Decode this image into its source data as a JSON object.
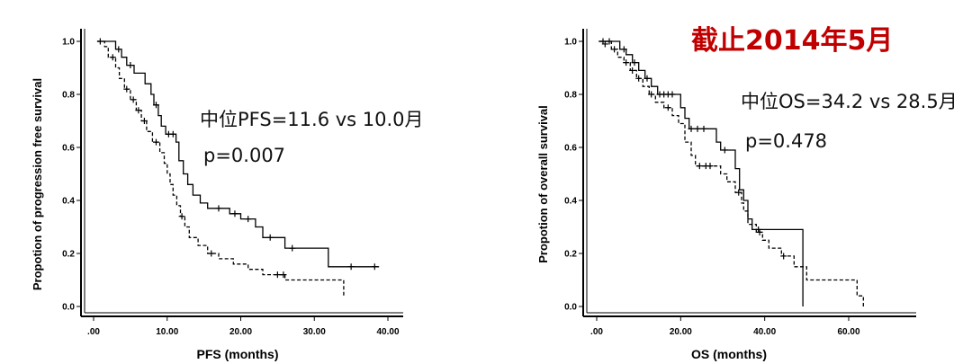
{
  "banner": "截止2014年5月",
  "chart_data": [
    {
      "type": "line",
      "subtype": "kaplan-meier",
      "title": "",
      "xlabel": "PFS (months)",
      "ylabel": "Propotion of progression free survival",
      "xlim": [
        0,
        40
      ],
      "ylim": [
        0,
        1.0
      ],
      "xticks": [
        0,
        10,
        20,
        30,
        40
      ],
      "xtick_labels": [
        ".00",
        "10.00",
        "20.00",
        "30.00",
        "40.00"
      ],
      "yticks": [
        0,
        0.2,
        0.4,
        0.6,
        0.8,
        1.0
      ],
      "ytick_labels": [
        "0.0",
        "0.2",
        "0.4",
        "0.6",
        "0.8",
        "1.0"
      ],
      "annotations": [
        "中位PFS=11.6 vs 10.0月",
        "p=0.007"
      ],
      "series": [
        {
          "style": "solid",
          "steps": [
            [
              0.5,
              1.0
            ],
            [
              2.0,
              1.0
            ],
            [
              3.0,
              0.97
            ],
            [
              3.8,
              0.94
            ],
            [
              4.5,
              0.91
            ],
            [
              5.5,
              0.88
            ],
            [
              7.0,
              0.84
            ],
            [
              7.8,
              0.8
            ],
            [
              8.2,
              0.76
            ],
            [
              8.8,
              0.72
            ],
            [
              9.2,
              0.68
            ],
            [
              9.8,
              0.65
            ],
            [
              11.2,
              0.62
            ],
            [
              11.6,
              0.55
            ],
            [
              12.2,
              0.5
            ],
            [
              12.8,
              0.46
            ],
            [
              13.5,
              0.42
            ],
            [
              14.5,
              0.39
            ],
            [
              15.5,
              0.37
            ],
            [
              18.0,
              0.37
            ],
            [
              18.5,
              0.35
            ],
            [
              20.0,
              0.33
            ],
            [
              22.0,
              0.3
            ],
            [
              23.0,
              0.26
            ],
            [
              25.5,
              0.26
            ],
            [
              26.0,
              0.22
            ],
            [
              31.8,
              0.22
            ],
            [
              31.9,
              0.15
            ],
            [
              38.8,
              0.15
            ]
          ],
          "censors": [
            [
              0.9,
              1.0
            ],
            [
              3.4,
              0.97
            ],
            [
              5.0,
              0.91
            ],
            [
              8.5,
              0.76
            ],
            [
              10.2,
              0.65
            ],
            [
              10.8,
              0.65
            ],
            [
              17.0,
              0.37
            ],
            [
              19.2,
              0.35
            ],
            [
              21.0,
              0.33
            ],
            [
              24.0,
              0.26
            ],
            [
              27.0,
              0.22
            ],
            [
              35.0,
              0.15
            ],
            [
              38.2,
              0.15
            ]
          ]
        },
        {
          "style": "dashed",
          "steps": [
            [
              0.5,
              1.0
            ],
            [
              1.5,
              0.98
            ],
            [
              2.0,
              0.94
            ],
            [
              3.0,
              0.9
            ],
            [
              3.5,
              0.86
            ],
            [
              4.2,
              0.82
            ],
            [
              5.0,
              0.78
            ],
            [
              5.8,
              0.74
            ],
            [
              6.5,
              0.7
            ],
            [
              7.2,
              0.66
            ],
            [
              8.0,
              0.62
            ],
            [
              9.0,
              0.58
            ],
            [
              9.6,
              0.54
            ],
            [
              10.0,
              0.5
            ],
            [
              10.4,
              0.46
            ],
            [
              10.8,
              0.42
            ],
            [
              11.3,
              0.38
            ],
            [
              11.8,
              0.34
            ],
            [
              12.4,
              0.3
            ],
            [
              13.0,
              0.26
            ],
            [
              14.2,
              0.23
            ],
            [
              15.5,
              0.2
            ],
            [
              17.0,
              0.18
            ],
            [
              19.0,
              0.16
            ],
            [
              21.0,
              0.14
            ],
            [
              23.0,
              0.12
            ],
            [
              26.0,
              0.1
            ],
            [
              33.5,
              0.1
            ],
            [
              34.0,
              0.04
            ]
          ],
          "censors": [
            [
              2.6,
              0.94
            ],
            [
              4.5,
              0.82
            ],
            [
              5.4,
              0.78
            ],
            [
              6.1,
              0.74
            ],
            [
              6.9,
              0.7
            ],
            [
              8.5,
              0.62
            ],
            [
              12.0,
              0.34
            ],
            [
              16.0,
              0.2
            ],
            [
              25.0,
              0.12
            ],
            [
              25.8,
              0.12
            ]
          ]
        }
      ]
    },
    {
      "type": "line",
      "subtype": "kaplan-meier",
      "title": "",
      "xlabel": "OS (months)",
      "ylabel": "Propotion of overall survival",
      "xlim": [
        0,
        70
      ],
      "ylim": [
        0,
        1.0
      ],
      "xticks": [
        0,
        20,
        40,
        60
      ],
      "xtick_labels": [
        ".00",
        "20.00",
        "40.00",
        "60.00"
      ],
      "yticks": [
        0,
        0.2,
        0.4,
        0.6,
        0.8,
        1.0
      ],
      "ytick_labels": [
        "0.0",
        "0.2",
        "0.4",
        "0.6",
        "0.8",
        "1.0"
      ],
      "annotations": [
        "中位OS=34.2 vs 28.5月",
        "p=0.478"
      ],
      "series": [
        {
          "style": "solid",
          "steps": [
            [
              0.5,
              1.0
            ],
            [
              4.0,
              1.0
            ],
            [
              5.5,
              0.97
            ],
            [
              7.0,
              0.95
            ],
            [
              8.5,
              0.92
            ],
            [
              10.0,
              0.89
            ],
            [
              11.5,
              0.86
            ],
            [
              13.0,
              0.83
            ],
            [
              14.5,
              0.8
            ],
            [
              19.0,
              0.8
            ],
            [
              20.0,
              0.75
            ],
            [
              21.0,
              0.71
            ],
            [
              22.0,
              0.67
            ],
            [
              27.0,
              0.67
            ],
            [
              28.5,
              0.62
            ],
            [
              29.5,
              0.59
            ],
            [
              32.0,
              0.59
            ],
            [
              33.0,
              0.52
            ],
            [
              34.0,
              0.44
            ],
            [
              35.0,
              0.4
            ],
            [
              36.0,
              0.33
            ],
            [
              37.0,
              0.29
            ],
            [
              49.0,
              0.29
            ],
            [
              49.1,
              0.0
            ]
          ],
          "censors": [
            [
              1.5,
              1.0
            ],
            [
              3.0,
              1.0
            ],
            [
              6.5,
              0.97
            ],
            [
              9.0,
              0.92
            ],
            [
              12.0,
              0.86
            ],
            [
              15.0,
              0.8
            ],
            [
              16.0,
              0.8
            ],
            [
              17.0,
              0.8
            ],
            [
              18.0,
              0.8
            ],
            [
              22.5,
              0.67
            ],
            [
              24.0,
              0.67
            ],
            [
              25.5,
              0.67
            ],
            [
              30.5,
              0.59
            ],
            [
              38.5,
              0.29
            ]
          ]
        },
        {
          "style": "dashed",
          "steps": [
            [
              0.5,
              1.0
            ],
            [
              3.5,
              0.97
            ],
            [
              5.0,
              0.94
            ],
            [
              6.5,
              0.92
            ],
            [
              8.0,
              0.89
            ],
            [
              9.5,
              0.86
            ],
            [
              11.0,
              0.83
            ],
            [
              12.5,
              0.8
            ],
            [
              14.0,
              0.77
            ],
            [
              16.0,
              0.75
            ],
            [
              18.0,
              0.72
            ],
            [
              19.5,
              0.69
            ],
            [
              21.0,
              0.62
            ],
            [
              22.5,
              0.57
            ],
            [
              23.5,
              0.53
            ],
            [
              28.0,
              0.53
            ],
            [
              29.5,
              0.5
            ],
            [
              31.0,
              0.47
            ],
            [
              33.0,
              0.43
            ],
            [
              34.5,
              0.39
            ],
            [
              35.0,
              0.36
            ],
            [
              36.0,
              0.31
            ],
            [
              38.0,
              0.28
            ],
            [
              39.5,
              0.25
            ],
            [
              41.0,
              0.22
            ],
            [
              44.0,
              0.19
            ],
            [
              47.0,
              0.15
            ],
            [
              50.0,
              0.1
            ],
            [
              58.0,
              0.1
            ],
            [
              62.0,
              0.04
            ],
            [
              63.5,
              0.0
            ]
          ],
          "censors": [
            [
              2.0,
              0.99
            ],
            [
              4.2,
              0.97
            ],
            [
              7.0,
              0.92
            ],
            [
              8.5,
              0.89
            ],
            [
              10.0,
              0.86
            ],
            [
              13.0,
              0.8
            ],
            [
              17.0,
              0.75
            ],
            [
              24.5,
              0.53
            ],
            [
              26.0,
              0.53
            ],
            [
              27.0,
              0.53
            ],
            [
              33.8,
              0.43
            ],
            [
              38.8,
              0.28
            ],
            [
              44.5,
              0.19
            ]
          ]
        }
      ]
    }
  ]
}
